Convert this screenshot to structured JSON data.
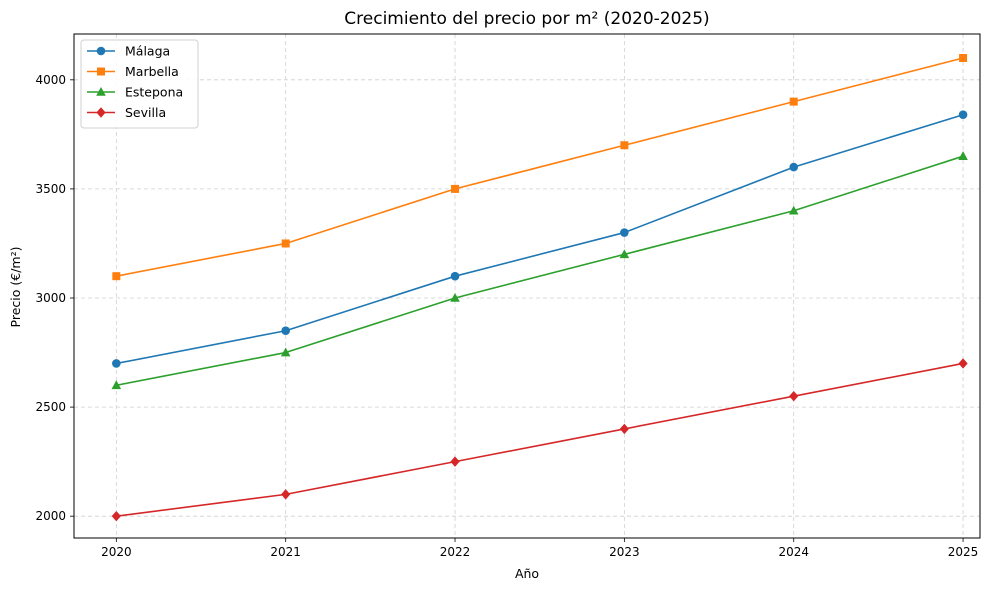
{
  "chart_data": {
    "type": "line",
    "title": "Crecimiento del precio por m² (2020-2025)",
    "xlabel": "Año",
    "ylabel": "Precio (€/m²)",
    "x": [
      2020,
      2021,
      2022,
      2023,
      2024,
      2025
    ],
    "x_tick_labels": [
      "2020",
      "2021",
      "2022",
      "2023",
      "2024",
      "2025"
    ],
    "y_ticks": [
      2000,
      2500,
      3000,
      3500,
      4000
    ],
    "y_tick_labels": [
      "2000",
      "2500",
      "3000",
      "3500",
      "4000"
    ],
    "xlim": [
      2019.75,
      2025.1
    ],
    "ylim": [
      1900,
      4210
    ],
    "grid": true,
    "legend_position": "top-left",
    "series": [
      {
        "name": "Málaga",
        "color": "#1f77b4",
        "marker": "circle",
        "values": [
          2700,
          2850,
          3100,
          3300,
          3600,
          3840
        ]
      },
      {
        "name": "Marbella",
        "color": "#ff7f0e",
        "marker": "square",
        "values": [
          3100,
          3250,
          3500,
          3700,
          3900,
          4100
        ]
      },
      {
        "name": "Estepona",
        "color": "#2ca02c",
        "marker": "triangle",
        "values": [
          2600,
          2750,
          3000,
          3200,
          3400,
          3650
        ]
      },
      {
        "name": "Sevilla",
        "color": "#d62728",
        "marker": "diamond",
        "values": [
          2000,
          2100,
          2250,
          2400,
          2550,
          2700
        ]
      }
    ]
  }
}
